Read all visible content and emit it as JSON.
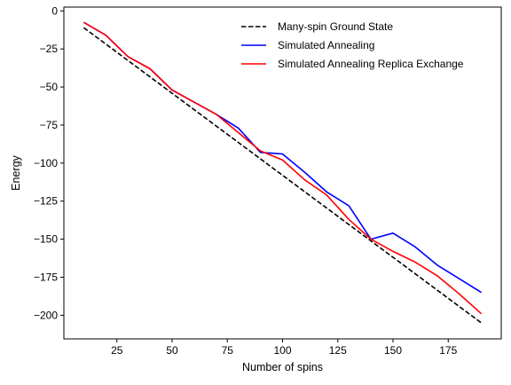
{
  "chart_data": {
    "type": "line",
    "xlabel": "Number of spins",
    "ylabel": "Energy",
    "xlim": [
      1,
      199
    ],
    "ylim": [
      -215.5,
      2.5
    ],
    "xticks": [
      25,
      50,
      75,
      100,
      125,
      150,
      175
    ],
    "yticks": [
      0,
      -25,
      -50,
      -75,
      -100,
      -125,
      -150,
      -175,
      -200
    ],
    "grid": false,
    "legend": {
      "position": "top-right"
    },
    "series": [
      {
        "name": "Many-spin Ground State",
        "color": "#000000",
        "style": "dashed",
        "x": [
          10,
          190
        ],
        "y": [
          -11,
          -205
        ]
      },
      {
        "name": "Simulated Annealing",
        "color": "#0000ff",
        "style": "solid",
        "x": [
          10,
          20,
          30,
          40,
          50,
          60,
          70,
          80,
          90,
          100,
          110,
          120,
          130,
          140,
          150,
          160,
          170,
          180,
          190
        ],
        "y": [
          -7.5,
          -16,
          -30,
          -38,
          -52,
          -60,
          -68,
          -77,
          -93,
          -94,
          -106,
          -119,
          -128,
          -150,
          -146,
          -155,
          -167,
          -176,
          -185
        ]
      },
      {
        "name": "Simulated Annealing Replica Exchange",
        "color": "#ff0000",
        "style": "solid",
        "x": [
          10,
          20,
          30,
          40,
          50,
          60,
          70,
          80,
          90,
          100,
          110,
          120,
          130,
          140,
          150,
          160,
          170,
          180,
          190
        ],
        "y": [
          -7.5,
          -16,
          -30,
          -38,
          -52,
          -60,
          -68,
          -80,
          -92,
          -98,
          -111,
          -121,
          -137,
          -150,
          -158,
          -165,
          -174,
          -186,
          -199
        ]
      }
    ]
  }
}
